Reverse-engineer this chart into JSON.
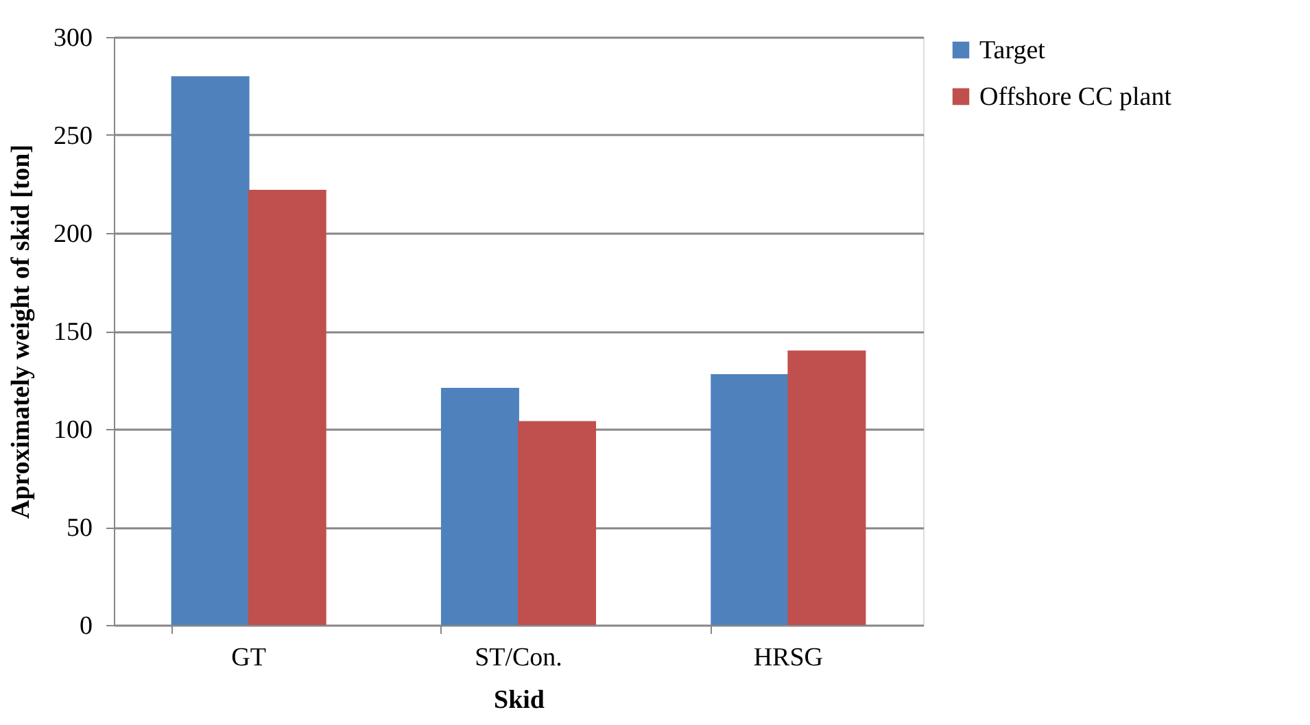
{
  "chart_data": {
    "type": "bar",
    "xlabel": "Skid",
    "ylabel": "Aproximately weight of skid [ton]",
    "categories": [
      "GT",
      "ST/Con.",
      "HRSG"
    ],
    "series": [
      {
        "name": "Target",
        "color": "#4f81bd",
        "values": [
          280,
          121,
          128
        ]
      },
      {
        "name": "Offshore CC plant",
        "color": "#c0504d",
        "values": [
          222,
          104,
          140
        ]
      }
    ],
    "ylim": [
      0,
      300
    ],
    "yticks": [
      0,
      50,
      100,
      150,
      200,
      250,
      300
    ],
    "grid": "y",
    "legend": "right"
  }
}
